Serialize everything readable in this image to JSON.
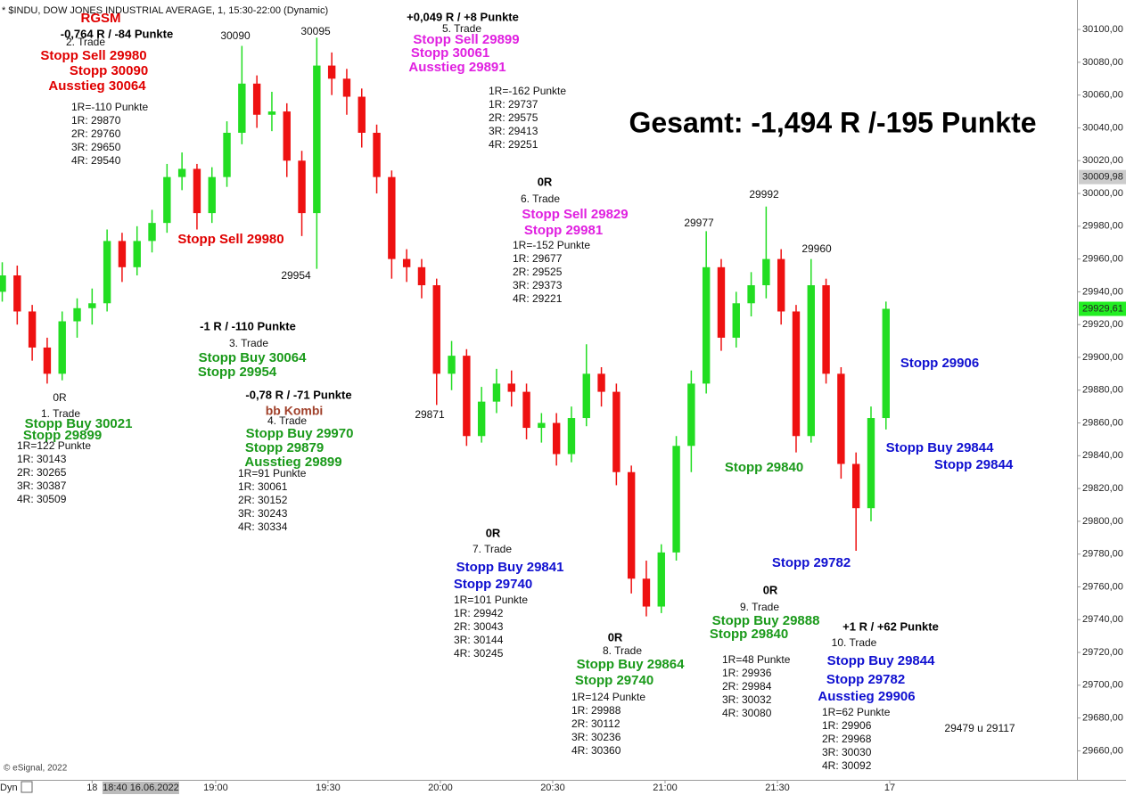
{
  "chart_data": {
    "type": "candlestick",
    "title": "* $INDU, DOW JONES INDUSTRIAL AVERAGE, 1, 15:30-22:00 (Dynamic)",
    "source": "© eSignal, 2022",
    "mode_label": "Dyn",
    "up_color": "#22dd22",
    "down_color": "#ee1111",
    "xlim": [
      2.4,
      290
    ],
    "ylim": [
      29645,
      30118
    ],
    "xticks": [
      {
        "value": 27,
        "label": "18"
      },
      {
        "value": 60,
        "label": "19:00"
      },
      {
        "value": 90,
        "label": "19:30"
      },
      {
        "value": 120,
        "label": "20:00"
      },
      {
        "value": 150,
        "label": "20:30"
      },
      {
        "value": 180,
        "label": "21:00"
      },
      {
        "value": 210,
        "label": "21:30"
      },
      {
        "value": 240,
        "label": "17"
      }
    ],
    "cursor_label": {
      "value": 40,
      "label": "18:40 16.06.2022"
    },
    "yticks": [
      {
        "value": 29660,
        "label": "29660,00"
      },
      {
        "value": 29680,
        "label": "29680,00"
      },
      {
        "value": 29700,
        "label": "29700,00"
      },
      {
        "value": 29720,
        "label": "29720,00"
      },
      {
        "value": 29740,
        "label": "29740,00"
      },
      {
        "value": 29760,
        "label": "29760,00"
      },
      {
        "value": 29780,
        "label": "29780,00"
      },
      {
        "value": 29800,
        "label": "29800,00"
      },
      {
        "value": 29820,
        "label": "29820,00"
      },
      {
        "value": 29840,
        "label": "29840,00"
      },
      {
        "value": 29860,
        "label": "29860,00"
      },
      {
        "value": 29880,
        "label": "29880,00"
      },
      {
        "value": 29900,
        "label": "29900,00"
      },
      {
        "value": 29920,
        "label": "29920,00"
      },
      {
        "value": 29940,
        "label": "29940,00"
      },
      {
        "value": 29960,
        "label": "29960,00"
      },
      {
        "value": 29980,
        "label": "29980,00"
      },
      {
        "value": 30000,
        "label": "30000,00"
      },
      {
        "value": 30020,
        "label": "30020,00"
      },
      {
        "value": 30040,
        "label": "30040,00"
      },
      {
        "value": 30060,
        "label": "30060,00"
      },
      {
        "value": 30080,
        "label": "30080,00"
      },
      {
        "value": 30100,
        "label": "30100,00"
      }
    ],
    "price_labels": [
      {
        "value": 30009.98,
        "label": "30009,98",
        "color": "#cccccc"
      },
      {
        "value": 29929.61,
        "label": "29929,61",
        "color": "#22ee22"
      }
    ],
    "x": [
      3,
      7,
      11,
      15,
      19,
      23,
      27,
      31,
      35,
      39,
      43,
      47,
      51,
      55,
      59,
      63,
      67,
      71,
      75,
      79,
      83,
      87,
      91,
      95,
      99,
      103,
      107,
      111,
      115,
      119,
      123,
      127,
      131,
      135,
      139,
      143,
      147,
      151,
      155,
      159,
      163,
      167,
      171,
      175,
      179,
      183,
      187,
      191,
      195,
      199,
      203,
      207,
      211,
      215,
      219,
      223,
      227,
      231,
      235,
      239
    ],
    "open": [
      29940,
      29950,
      29928,
      29906,
      29890,
      29922,
      29930,
      29933,
      29971,
      29955,
      29971,
      29982,
      30010,
      30015,
      29988,
      30010,
      30037,
      30067,
      30048,
      30050,
      30020,
      29988,
      30078,
      30070,
      30059,
      30037,
      30010,
      29960,
      29955,
      29944,
      29890,
      29901,
      29852,
      29873,
      29884,
      29879,
      29857,
      29860,
      29841,
      29863,
      29890,
      29879,
      29830,
      29765,
      29748,
      29781,
      29846,
      29884,
      29955,
      29912,
      29933,
      29944,
      29960,
      29928,
      29852,
      29944,
      29890,
      29835,
      29808,
      29863
    ],
    "high": [
      29958,
      29956,
      29932,
      29912,
      29928,
      29936,
      29942,
      29978,
      29976,
      29980,
      29990,
      30018,
      30025,
      30018,
      30016,
      30044,
      30090,
      30072,
      30062,
      30055,
      30026,
      30095,
      30086,
      30076,
      30064,
      30042,
      30014,
      29966,
      29960,
      29948,
      29910,
      29905,
      29882,
      29893,
      29892,
      29884,
      29866,
      29866,
      29870,
      29908,
      29894,
      29884,
      29834,
      29776,
      29786,
      29852,
      29892,
      29977,
      29960,
      29940,
      29952,
      29992,
      29966,
      29932,
      29960,
      29948,
      29894,
      29842,
      29870,
      29934
    ],
    "low": [
      29934,
      29920,
      29898,
      29884,
      29886,
      29912,
      29920,
      29928,
      29946,
      29950,
      29964,
      29976,
      30002,
      29978,
      29982,
      30004,
      30030,
      30040,
      30038,
      30010,
      29974,
      29954,
      30060,
      30048,
      30028,
      30000,
      29948,
      29946,
      29936,
      29871,
      29880,
      29846,
      29848,
      29866,
      29870,
      29850,
      29848,
      29834,
      29836,
      29858,
      29870,
      29822,
      29756,
      29742,
      29744,
      29776,
      29830,
      29878,
      29904,
      29906,
      29925,
      29936,
      29920,
      29842,
      29848,
      29884,
      29826,
      29782,
      29800,
      29856
    ],
    "close": [
      29950,
      29928,
      29906,
      29890,
      29922,
      29930,
      29933,
      29971,
      29955,
      29971,
      29982,
      30010,
      30015,
      29988,
      30010,
      30037,
      30067,
      30048,
      30050,
      30020,
      29988,
      30078,
      30070,
      30059,
      30037,
      30010,
      29960,
      29955,
      29944,
      29890,
      29901,
      29852,
      29873,
      29884,
      29879,
      29857,
      29860,
      29841,
      29863,
      29890,
      29879,
      29830,
      29765,
      29748,
      29781,
      29846,
      29884,
      29955,
      29912,
      29933,
      29944,
      29960,
      29928,
      29852,
      29944,
      29890,
      29835,
      29808,
      29863,
      29929.61
    ],
    "annotations": [
      "RGSM",
      "-0,764 R / -84 Punkte",
      "2. Trade",
      "Stopp Sell 29980",
      "Stopp 30090",
      "Ausstieg 30064",
      "1R=-110 Punkte",
      "1R: 29870",
      "2R: 29760",
      "3R: 29650",
      "4R: 29540",
      "30090",
      "30095",
      "+0,049 R / +8 Punkte",
      "5. Trade",
      "Stopp Sell 29899",
      "Stopp 30061",
      "Ausstieg 29891",
      "1R=-162 Punkte",
      "1R: 29737",
      "2R: 29575",
      "3R: 29413",
      "4R: 29251",
      "Gesamt: -1,494 R /-195 Punkte",
      "0R",
      "6. Trade",
      "Stopp Sell 29829",
      "Stopp 29981",
      "1R=-152 Punkte",
      "1R: 29677",
      "2R: 29525",
      "3R: 29373",
      "4R: 29221",
      "Stopp Sell 29980",
      "29954",
      "29977",
      "29992",
      "29960",
      "29871",
      "-1 R / -110 Punkte",
      "3. Trade",
      "Stopp Buy 30064",
      "Stopp 29954",
      "-0,78 R / -71 Punkte",
      "bb Kombi",
      "4. Trade",
      "Stopp Buy 29970",
      "Stopp 29879",
      "Ausstieg 29899",
      "1R=91 Punkte",
      "1R: 30061",
      "2R: 30152",
      "3R: 30243",
      "4R: 30334",
      "0R",
      "1. Trade",
      "Stopp Buy 30021",
      "Stopp 29899",
      "1R=122 Punkte",
      "1R: 30143",
      "2R: 30265",
      "3R: 30387",
      "4R: 30509",
      "0R",
      "7. Trade",
      "Stopp Buy 29841",
      "Stopp 29740",
      "1R=101 Punkte",
      "1R: 29942",
      "2R: 30043",
      "3R: 30144",
      "4R: 30245",
      "0R",
      "8. Trade",
      "Stopp Buy 29864",
      "Stopp 29740",
      "1R=124 Punkte",
      "1R: 29988",
      "2R: 30112",
      "3R: 30236",
      "4R: 30360",
      "0R",
      "9. Trade",
      "Stopp Buy 29888",
      "Stopp 29840",
      "1R=48 Punkte",
      "1R: 29936",
      "2R: 29984",
      "3R: 30032",
      "4R: 30080",
      "+1 R / +62 Punkte",
      "10. Trade",
      "Stopp Buy 29844",
      "Stopp 29782",
      "Ausstieg 29906",
      "1R=62 Punkte",
      "1R: 29906",
      "2R: 29968",
      "3R: 30030",
      "4R: 30092",
      "Stopp 29906",
      "Stopp Buy 29844",
      "Stopp 29844",
      "Stopp 29840",
      "Stopp 29782",
      "29479 u 29117"
    ]
  }
}
